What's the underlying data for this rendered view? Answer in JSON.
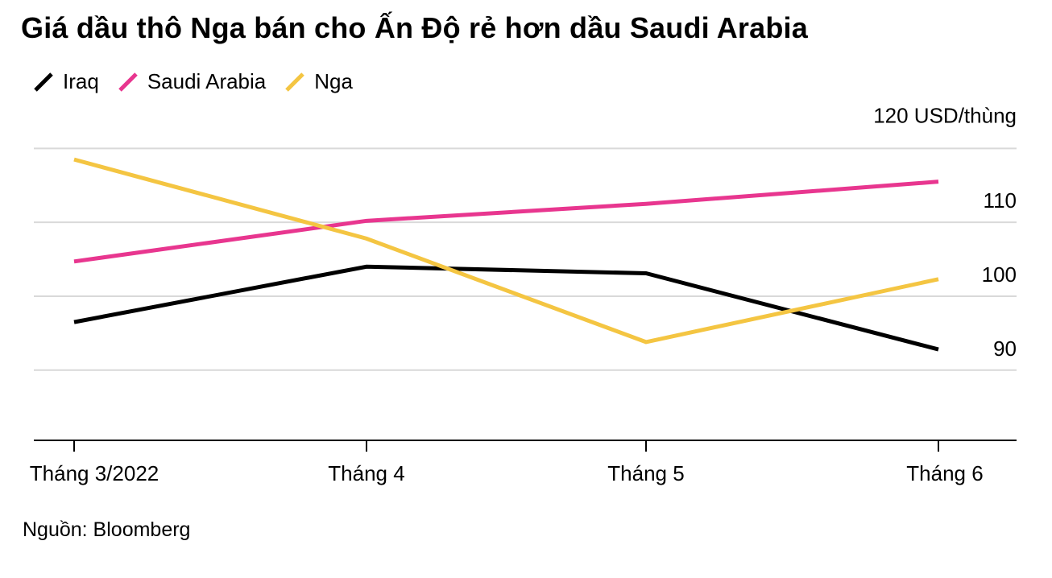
{
  "title": "Giá dầu thô Nga bán cho Ấn Độ rẻ hơn dầu Saudi Arabia",
  "source": "Nguồn: Bloomberg",
  "chart_data": {
    "type": "line",
    "categories": [
      "Tháng 3/2022",
      "Tháng 4",
      "Tháng 5",
      "Tháng 6"
    ],
    "series": [
      {
        "name": "Iraq",
        "color": "#000000",
        "values": [
          96.5,
          104.0,
          103.1,
          92.8
        ]
      },
      {
        "name": "Saudi Arabia",
        "color": "#e8368f",
        "values": [
          104.7,
          110.2,
          112.5,
          115.5
        ]
      },
      {
        "name": "Nga",
        "color": "#f4c542",
        "values": [
          118.5,
          107.8,
          93.8,
          102.3
        ]
      }
    ],
    "y_ticks": [
      {
        "value": 90,
        "label": "90"
      },
      {
        "value": 100,
        "label": "100"
      },
      {
        "value": 110,
        "label": "110"
      },
      {
        "value": 120,
        "label": "120 USD/thùng"
      }
    ],
    "ylim": [
      80.5,
      122
    ],
    "grid": true,
    "legend_position": "top-left"
  }
}
